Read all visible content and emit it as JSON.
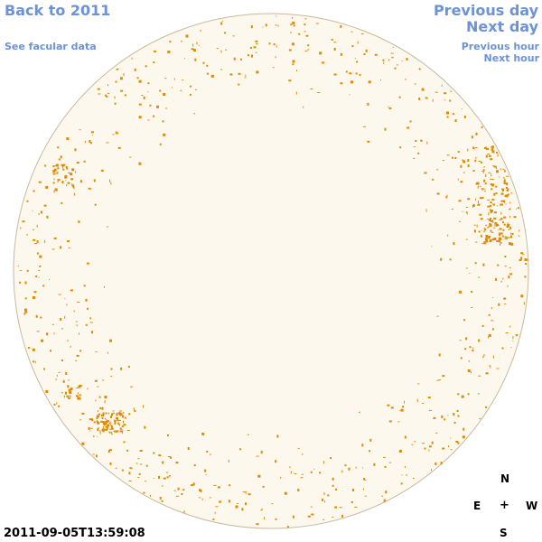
{
  "nav": {
    "back": "Back to 2011",
    "facular": "See facular data",
    "previous_day": "Previous day",
    "next_day": "Next day",
    "previous_hour": "Previous hour",
    "next_hour": "Next hour"
  },
  "timestamp": "2011-09-05T13:59:08",
  "compass": {
    "north": "N",
    "east": "E",
    "center": "+",
    "west": "W",
    "south": "S"
  },
  "colors": {
    "link": "#6b93d6",
    "disk_fill": "#fdf8ee",
    "disk_edge": "#c9b99e",
    "facula": "#e08a00"
  },
  "icons": {
    "disk": "solar-disk-image"
  }
}
